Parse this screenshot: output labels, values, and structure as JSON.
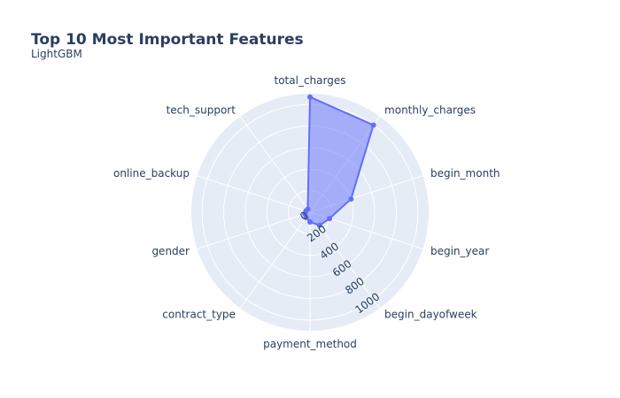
{
  "chart_data": {
    "type": "radar",
    "title": "Top 10 Most Important Features",
    "subtitle": "LightGBM",
    "categories": [
      "total_charges",
      "monthly_charges",
      "begin_month",
      "begin_year",
      "begin_dayofweek",
      "payment_method",
      "contract_type",
      "gender",
      "online_backup",
      "tech_support"
    ],
    "values": [
      1070,
      1000,
      400,
      190,
      150,
      90,
      60,
      50,
      40,
      35
    ],
    "radial_range": [
      0,
      1100
    ],
    "radial_ticks": [
      0,
      200,
      400,
      600,
      800,
      1000
    ],
    "grid": true,
    "colors": {
      "fill": "#636efa",
      "line": "#636efa",
      "polar_bg": "#e5ecf6",
      "grid": "#ffffff",
      "text": "#2a3f5f"
    }
  }
}
